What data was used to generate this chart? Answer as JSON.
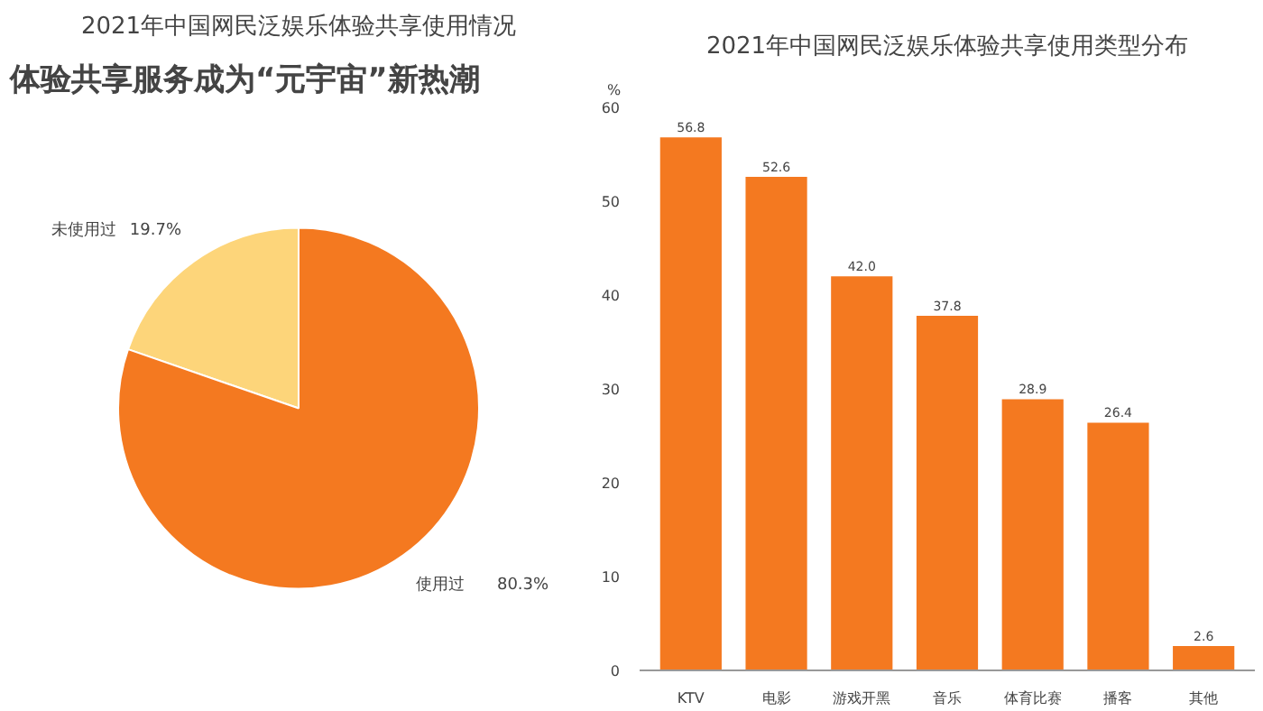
{
  "chart_data": [
    {
      "type": "pie",
      "title": "2021年中国网民泛娱乐体验共享使用情况",
      "annotations": [
        "体验共享服务成为“元宇宙”新热潮"
      ],
      "categories": [
        "未使用过",
        "使用过"
      ],
      "values": [
        19.7,
        80.3
      ],
      "colors": [
        "#fdd57a",
        "#f47920"
      ],
      "value_labels": [
        "19.7%",
        "80.3%"
      ]
    },
    {
      "type": "bar",
      "title": "2021年中国网民泛娱乐体验共享使用类型分布",
      "ylabel": "%",
      "categories": [
        "KTV",
        "电影",
        "游戏开黑",
        "音乐",
        "体育比赛",
        "播客",
        "其他"
      ],
      "values": [
        56.8,
        52.6,
        42.0,
        37.8,
        28.9,
        26.4,
        2.6
      ],
      "value_labels": [
        "56.8",
        "52.6",
        "42.0",
        "37.8",
        "28.9",
        "26.4",
        "2.6"
      ],
      "color": "#f47920",
      "ylim": [
        0,
        60
      ],
      "yticks": [
        0,
        10,
        20,
        30,
        40,
        50,
        60
      ],
      "grid": false
    }
  ]
}
